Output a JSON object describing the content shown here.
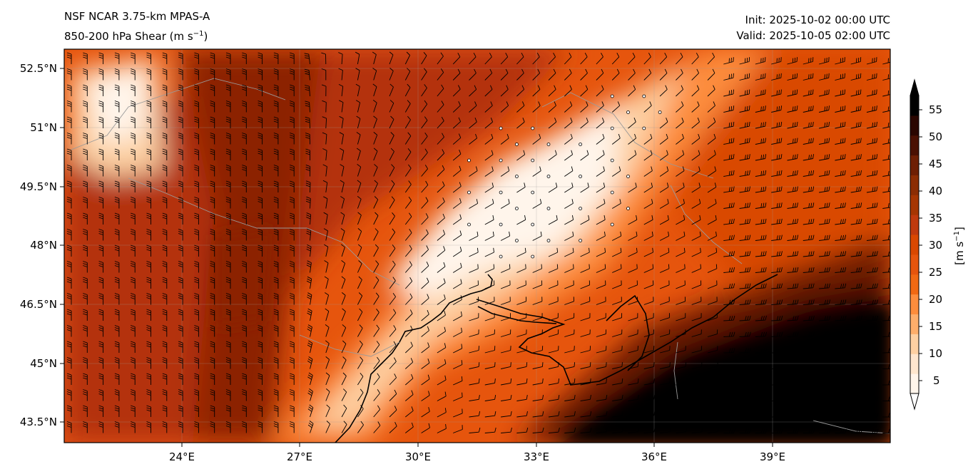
{
  "header": {
    "model": "NSF NCAR 3.75-km MPAS-A",
    "field_prefix": "850-200 hPa Shear (m s",
    "field_exp": "−1",
    "field_suffix": ")",
    "init": "Init: 2025-10-02 00:00 UTC",
    "valid": "Valid: 2025-10-05 02:00 UTC"
  },
  "axes": {
    "lat_labels": [
      "52.5°N",
      "51°N",
      "49.5°N",
      "48°N",
      "46.5°N",
      "45°N",
      "43.5°N"
    ],
    "lon_labels": [
      "24°E",
      "27°E",
      "30°E",
      "33°E",
      "36°E",
      "39°E"
    ]
  },
  "colorbar": {
    "ticks": [
      "55",
      "50",
      "45",
      "40",
      "35",
      "30",
      "25",
      "20",
      "15",
      "10",
      "5"
    ],
    "label_prefix": "[m s",
    "label_exp": "−1",
    "label_suffix": "]",
    "colors": [
      "#fff5eb",
      "#fee6ce",
      "#fdd0a2",
      "#fdae6b",
      "#fd8d3c",
      "#f16913",
      "#e6550d",
      "#d94801",
      "#c03a0e",
      "#a63603",
      "#8c2d04",
      "#6e1f04",
      "#4a1002",
      "#2a0600",
      "#000000"
    ]
  },
  "map_colors": {
    "very_low": "#fff5eb",
    "low": "#fdd0a2",
    "mid": "#fd8d3c",
    "high": "#e6550d",
    "very_high": "#b4320a",
    "extreme": "#8c2004",
    "black": "#050000"
  }
}
